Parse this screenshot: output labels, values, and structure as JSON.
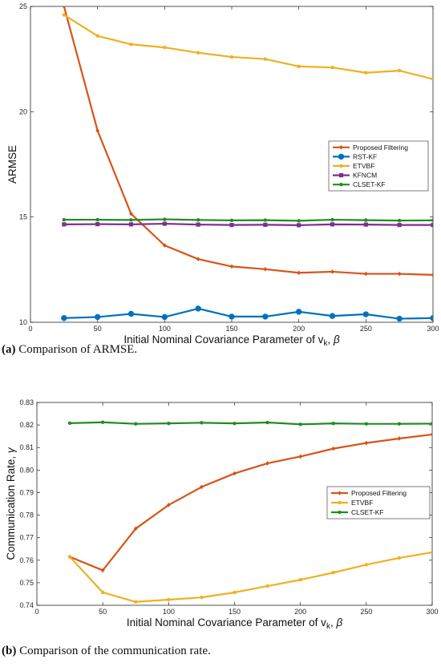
{
  "figure": {
    "caption_a": {
      "tag": "(a)",
      "text": " Comparison of ARMSE."
    },
    "caption_b": {
      "tag": "(b)",
      "text": " Comparison of the communication rate."
    }
  },
  "chart_data": [
    {
      "type": "line",
      "xlabel": "Initial Nominal Covariance Parameter of v_k, β",
      "ylabel": "ARMSE",
      "xlim": [
        0,
        300
      ],
      "ylim": [
        10,
        25
      ],
      "xticks": [
        0,
        50,
        100,
        150,
        200,
        250,
        300
      ],
      "yticks": [
        10,
        15,
        20,
        25
      ],
      "grid": false,
      "legend": "center-right",
      "x": [
        25,
        50,
        75,
        100,
        125,
        150,
        175,
        200,
        225,
        250,
        275,
        300
      ],
      "series": [
        {
          "name": "Proposed Filtering",
          "color": "#D95319",
          "marker": "diamond",
          "values": [
            25.0,
            19.1,
            15.15,
            13.65,
            13.0,
            12.65,
            12.52,
            12.35,
            12.4,
            12.3,
            12.3,
            12.25
          ]
        },
        {
          "name": "RST-KF",
          "color": "#0072BD",
          "marker": "circle",
          "values": [
            10.2,
            10.25,
            10.4,
            10.25,
            10.65,
            10.27,
            10.27,
            10.5,
            10.3,
            10.38,
            10.17,
            10.2
          ]
        },
        {
          "name": "ETVBF",
          "color": "#EDB120",
          "marker": "dot",
          "values": [
            24.6,
            23.6,
            23.2,
            23.05,
            22.8,
            22.6,
            22.5,
            22.15,
            22.1,
            21.85,
            21.95,
            21.55
          ]
        },
        {
          "name": "KFNCM",
          "color": "#7E2F8E",
          "marker": "square",
          "values": [
            14.65,
            14.66,
            14.65,
            14.68,
            14.64,
            14.62,
            14.63,
            14.61,
            14.65,
            14.64,
            14.62,
            14.62
          ]
        },
        {
          "name": "CLSET-KF",
          "color": "#228B22",
          "marker": "dot",
          "values": [
            14.87,
            14.87,
            14.86,
            14.89,
            14.86,
            14.84,
            14.85,
            14.82,
            14.87,
            14.85,
            14.83,
            14.84
          ]
        }
      ]
    },
    {
      "type": "line",
      "xlabel": "Initial Nominal Covariance Parameter of v_k, β",
      "ylabel": "Communication Rate, γ",
      "xlim": [
        0,
        300
      ],
      "ylim": [
        0.74,
        0.83
      ],
      "xticks": [
        0,
        50,
        100,
        150,
        200,
        250,
        300
      ],
      "yticks": [
        0.74,
        0.75,
        0.76,
        0.77,
        0.78,
        0.79,
        0.8,
        0.81,
        0.82,
        0.83
      ],
      "grid": false,
      "legend": "center-right",
      "x": [
        25,
        50,
        75,
        100,
        125,
        150,
        175,
        200,
        225,
        250,
        275,
        300
      ],
      "series": [
        {
          "name": "Proposed Filtering",
          "color": "#D95319",
          "marker": "diamond",
          "values": [
            0.7615,
            0.7555,
            0.774,
            0.7845,
            0.7925,
            0.7985,
            0.803,
            0.806,
            0.8095,
            0.812,
            0.814,
            0.8158
          ]
        },
        {
          "name": "ETVBF",
          "color": "#EDB120",
          "marker": "dot",
          "values": [
            0.7615,
            0.7457,
            0.7415,
            0.7425,
            0.7435,
            0.7457,
            0.7485,
            0.7513,
            0.7545,
            0.758,
            0.761,
            0.7635
          ]
        },
        {
          "name": "CLSET-KF",
          "color": "#228B22",
          "marker": "dot",
          "values": [
            0.8208,
            0.8212,
            0.8205,
            0.8207,
            0.821,
            0.8207,
            0.8211,
            0.8203,
            0.8207,
            0.8205,
            0.8205,
            0.8206
          ]
        }
      ]
    }
  ]
}
